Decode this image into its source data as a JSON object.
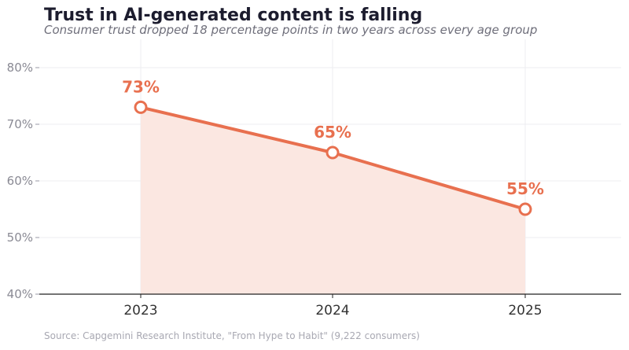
{
  "header": {
    "title": "Trust in AI-generated content is falling",
    "subtitle": "Consumer trust dropped 18 percentage points in two years across every age group"
  },
  "footer": {
    "source": "Source: Capgemini Research Institute, \"From Hype to Habit\" (9,222 consumers)"
  },
  "colors": {
    "line": "#e8704f",
    "area": "#fbe7e1",
    "grid": "#ececf0",
    "axis": "#222222",
    "tick_text": "#8a8a94",
    "x_tick_text": "#333333"
  },
  "chart_data": {
    "type": "line",
    "title": "Trust in AI-generated content is falling",
    "subtitle": "Consumer trust dropped 18 percentage points in two years across every age group",
    "xlabel": "",
    "ylabel": "",
    "categories": [
      "2023",
      "2024",
      "2025"
    ],
    "series": [
      {
        "values": [
          73,
          65,
          55
        ]
      }
    ],
    "data_labels": [
      "73%",
      "65%",
      "55%"
    ],
    "ylim": [
      40,
      85
    ],
    "yticks": [
      40,
      50,
      60,
      70,
      80
    ],
    "ytick_labels": [
      "40%",
      "50%",
      "60%",
      "70%",
      "80%"
    ],
    "grid": true,
    "area_fill": true,
    "legend": "none"
  }
}
